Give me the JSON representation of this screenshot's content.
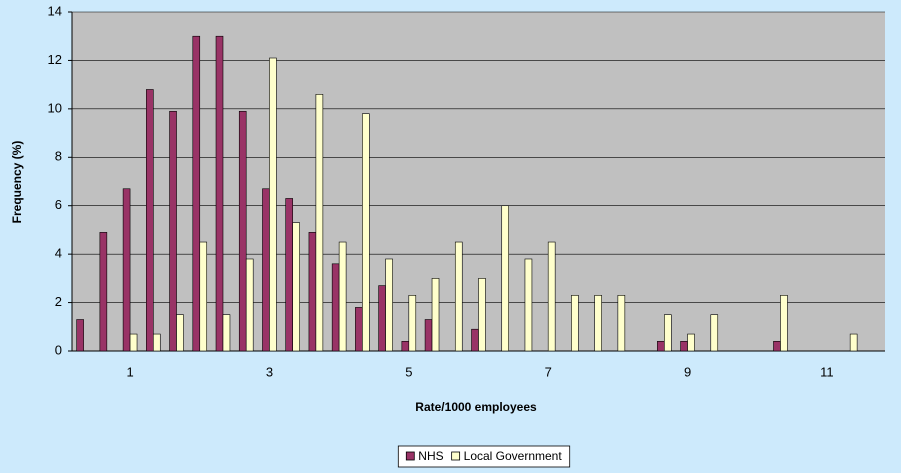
{
  "chart_data": {
    "type": "bar",
    "xlabel": "Rate/1000 employees",
    "ylabel": "Frequency (%)",
    "categories": [
      null,
      null,
      "1",
      null,
      null,
      null,
      null,
      null,
      "3",
      null,
      null,
      null,
      null,
      null,
      "5",
      null,
      null,
      null,
      null,
      null,
      "7",
      null,
      null,
      null,
      null,
      null,
      "9",
      null,
      null,
      null,
      null,
      null,
      "11",
      null,
      null
    ],
    "series": [
      {
        "name": "NHS",
        "color": "#993366",
        "values": [
          1.3,
          4.9,
          6.7,
          10.8,
          9.9,
          13,
          13,
          9.9,
          6.7,
          6.3,
          4.9,
          3.6,
          1.8,
          2.7,
          0.4,
          1.3,
          0,
          0.9,
          0,
          0,
          0,
          0,
          0,
          0,
          0,
          0.4,
          0.4,
          0,
          0,
          0,
          0.4,
          0,
          0,
          0,
          0
        ]
      },
      {
        "name": "Local Government",
        "color": "#ffffcc",
        "values": [
          0,
          0,
          0.7,
          0.7,
          1.5,
          4.5,
          1.5,
          3.8,
          12.1,
          5.3,
          10.6,
          4.5,
          9.8,
          3.8,
          2.3,
          3.0,
          4.5,
          3.0,
          6.0,
          3.8,
          4.5,
          2.3,
          2.3,
          2.3,
          0,
          1.5,
          0.7,
          1.5,
          0,
          0,
          2.3,
          0,
          0,
          0.7,
          0
        ]
      }
    ],
    "ylim": [
      0,
      14
    ],
    "yticks": [
      0,
      2,
      4,
      6,
      8,
      10,
      12,
      14
    ],
    "grid": true,
    "legend": "bottom"
  }
}
